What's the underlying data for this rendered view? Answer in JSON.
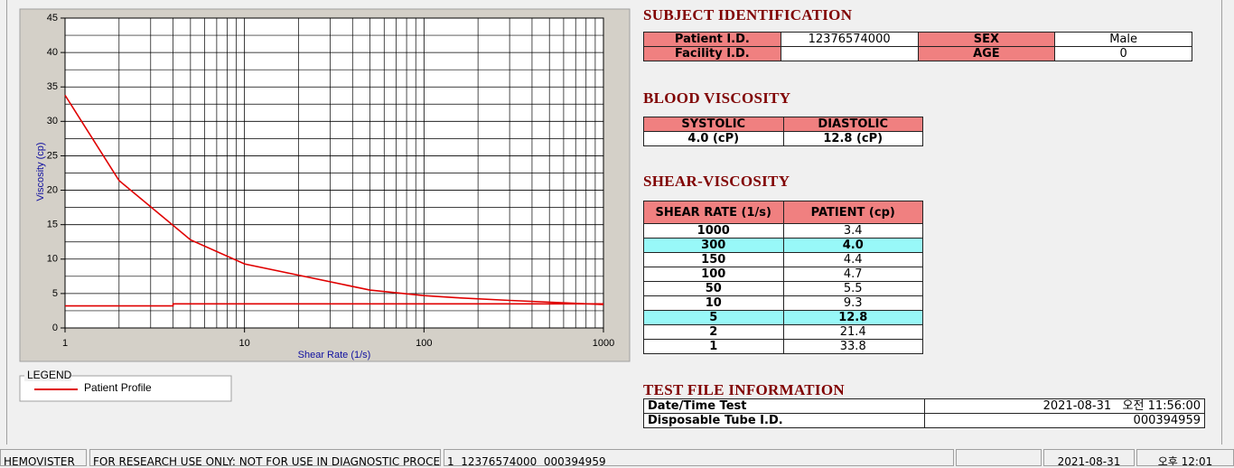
{
  "chart_data": {
    "type": "line",
    "x_label": "Shear Rate (1/s)",
    "y_label": "Viscosity (cp)",
    "xlim": [
      1,
      1000
    ],
    "ylim": [
      0,
      45
    ],
    "xticks": [
      1,
      10,
      100,
      1000
    ],
    "yticks": [
      0,
      5,
      10,
      15,
      20,
      25,
      30,
      35,
      40,
      45
    ],
    "log_x": true,
    "grid": true,
    "series": [
      {
        "name": "Patient Profile",
        "color": "#e00000",
        "x": [
          1,
          2,
          5,
          10,
          50,
          100,
          150,
          300,
          1000
        ],
        "values": [
          33.8,
          21.4,
          12.8,
          9.3,
          5.5,
          4.7,
          4.4,
          4.0,
          3.4
        ]
      },
      {
        "color": "#e00000",
        "x": [
          1,
          4,
          4,
          1000
        ],
        "values": [
          3.2,
          3.2,
          3.5,
          3.5
        ]
      }
    ],
    "legend": {
      "title": "LEGEND"
    }
  },
  "subject": {
    "title": "SUBJECT IDENTIFICATION",
    "rows": [
      [
        "Patient I.D.",
        "12376574000",
        "SEX",
        "Male"
      ],
      [
        "Facility I.D.",
        null,
        "AGE",
        "0"
      ]
    ]
  },
  "blood": {
    "title": "BLOOD VISCOSITY",
    "headers": [
      "SYSTOLIC",
      "DIASTOLIC"
    ],
    "values": [
      "4.0 (cP)",
      "12.8 (cP)"
    ]
  },
  "shear": {
    "title": "SHEAR-VISCOSITY",
    "headers": [
      "SHEAR RATE (1/s)",
      "PATIENT (cp)"
    ],
    "rows": [
      [
        1000,
        "3.4"
      ],
      [
        300,
        "4.0"
      ],
      [
        150,
        "4.4"
      ],
      [
        100,
        "4.7"
      ],
      [
        50,
        "5.5"
      ],
      [
        10,
        "9.3"
      ],
      [
        5,
        "12.8"
      ],
      [
        2,
        "21.4"
      ],
      [
        1,
        "33.8"
      ]
    ],
    "highlighted": [
      false,
      true,
      false,
      false,
      false,
      false,
      true,
      false,
      false
    ]
  },
  "test_file": {
    "title": "TEST FILE INFORMATION",
    "rows": [
      [
        "Date/Time Test",
        "2021-08-31   오전 11:56:00"
      ],
      [
        "Disposable Tube I.D.",
        "000394959"
      ]
    ]
  },
  "status_bar": [
    "HEMOVISTER",
    "FOR RESEARCH USE ONLY: NOT FOR USE IN DIAGNOSTIC PROCEDURES",
    "1  12376574000  000394959",
    null,
    "2021-08-31",
    "오후 12:01"
  ]
}
